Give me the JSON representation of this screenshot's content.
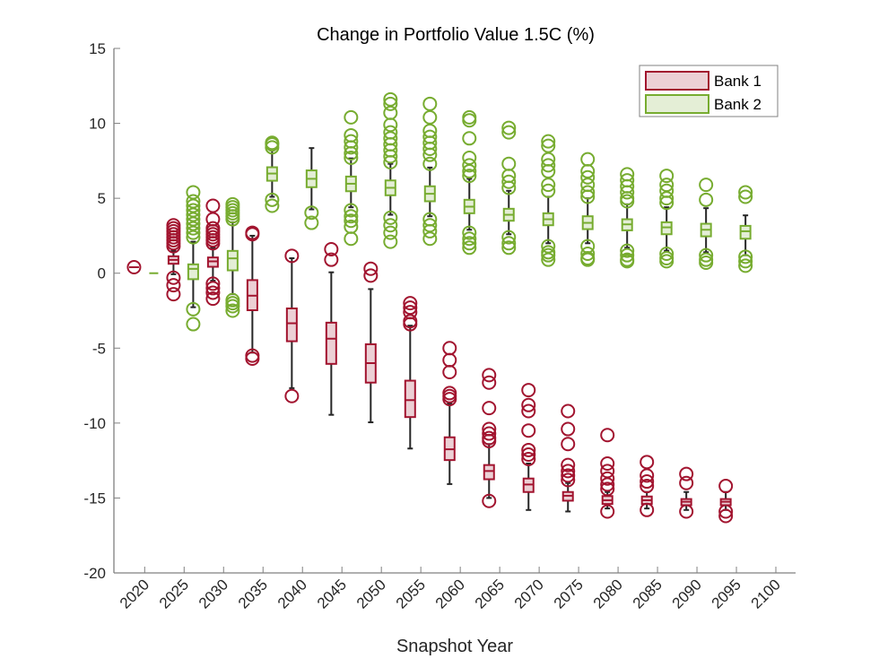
{
  "chart_data": {
    "type": "boxplot",
    "title": "Change in Portfolio Value 1.5C (%)",
    "xlabel": "Snapshot Year",
    "ylabel": "",
    "ylim": [
      -20,
      15
    ],
    "xlim": [
      2016.1,
      2102.5
    ],
    "yticks": [
      15,
      10,
      5,
      0,
      -5,
      -10,
      -15,
      -20
    ],
    "ytick_labels": [
      "15",
      "10",
      "5",
      "0",
      "-5",
      "-10",
      "-15",
      "-20"
    ],
    "xticks": [
      2020,
      2025,
      2030,
      2035,
      2040,
      2045,
      2050,
      2055,
      2060,
      2065,
      2070,
      2075,
      2080,
      2085,
      2090,
      2095,
      2100
    ],
    "xtick_labels": [
      "2020",
      "2025",
      "2030",
      "2035",
      "2040",
      "2045",
      "2050",
      "2055",
      "2060",
      "2065",
      "2070",
      "2075",
      "2080",
      "2085",
      "2090",
      "2095",
      "2100"
    ],
    "grid": false,
    "legend_position": "top-right",
    "legend": [
      "Bank 1",
      "Bank 2"
    ],
    "colors": {
      "Bank 1": "#A2142F",
      "Bank 2": "#77AC30",
      "Bank 1 fill": "#ECD0D5",
      "Bank 2 fill": "#E4EED6",
      "whisker": "#262626"
    },
    "series": [
      {
        "name": "Bank 1",
        "boxes": [
          {
            "year": 2020,
            "q1": 0.4,
            "median": 0.4,
            "q3": 0.4,
            "whisker_low": 0.4,
            "whisker_high": 0.4,
            "outliers": [
              0.4
            ]
          },
          {
            "year": 2025,
            "q1": 0.63,
            "median": 0.89,
            "q3": 1.13,
            "whisker_low": -0.07,
            "whisker_high": 1.49,
            "outliers": [
              1.8,
              2.0,
              2.2,
              2.4,
              2.6,
              2.8,
              3.0,
              3.2,
              -0.3,
              -0.8,
              -1.4
            ]
          },
          {
            "year": 2030,
            "q1": 0.43,
            "median": 0.79,
            "q3": 1.05,
            "whisker_low": -0.5,
            "whisker_high": 1.7,
            "outliers": [
              2.0,
              2.2,
              2.4,
              2.6,
              2.8,
              3.0,
              3.6,
              4.5,
              -0.7,
              -1.0,
              -1.3,
              -1.7
            ]
          },
          {
            "year": 2035,
            "q1": -2.47,
            "median": -1.5,
            "q3": -0.46,
            "whisker_low": -5.3,
            "whisker_high": 2.5,
            "outliers": [
              2.7,
              2.6,
              -5.5,
              -5.7
            ]
          },
          {
            "year": 2040,
            "q1": -4.54,
            "median": -3.34,
            "q3": -2.35,
            "whisker_low": -7.67,
            "whisker_high": 1.0,
            "outliers": [
              1.16,
              -8.2
            ]
          },
          {
            "year": 2045,
            "q1": -6.05,
            "median": -4.37,
            "q3": -3.3,
            "whisker_low": -9.45,
            "whisker_high": 0.06,
            "outliers": [
              1.6,
              0.9
            ]
          },
          {
            "year": 2050,
            "q1": -7.3,
            "median": -6.0,
            "q3": -4.74,
            "whisker_low": -9.95,
            "whisker_high": -1.06,
            "outliers": [
              0.3,
              -0.16
            ]
          },
          {
            "year": 2055,
            "q1": -9.6,
            "median": -8.47,
            "q3": -7.17,
            "whisker_low": -11.7,
            "whisker_high": -3.5,
            "outliers": [
              -2.0,
              -2.3,
              -2.6,
              -3.2,
              -3.4
            ]
          },
          {
            "year": 2060,
            "q1": -12.47,
            "median": -11.75,
            "q3": -10.95,
            "whisker_low": -14.07,
            "whisker_high": -8.7,
            "outliers": [
              -5.0,
              -5.8,
              -6.6,
              -8.0,
              -8.2,
              -8.4
            ]
          },
          {
            "year": 2065,
            "q1": -13.75,
            "median": -13.2,
            "q3": -12.8,
            "whisker_low": -15.0,
            "whisker_high": -11.4,
            "outliers": [
              -6.8,
              -7.3,
              -9.0,
              -10.4,
              -10.7,
              -11.0,
              -11.2,
              -15.2
            ]
          },
          {
            "year": 2070,
            "q1": -14.6,
            "median": -14.1,
            "q3": -13.7,
            "whisker_low": -15.8,
            "whisker_high": -12.7,
            "outliers": [
              -7.8,
              -8.8,
              -9.2,
              -10.5,
              -11.8,
              -12.1,
              -12.4
            ]
          },
          {
            "year": 2075,
            "q1": -15.18,
            "median": -14.85,
            "q3": -14.6,
            "whisker_low": -15.9,
            "whisker_high": -14.0,
            "outliers": [
              -9.2,
              -10.4,
              -11.4,
              -12.8,
              -13.2,
              -13.5,
              -13.8
            ]
          },
          {
            "year": 2080,
            "q1": -15.4,
            "median": -15.15,
            "q3": -14.87,
            "whisker_low": -15.7,
            "whisker_high": -14.6,
            "outliers": [
              -10.8,
              -12.7,
              -13.2,
              -13.7,
              -14.1,
              -14.4,
              -15.9
            ]
          },
          {
            "year": 2085,
            "q1": -15.4,
            "median": -15.15,
            "q3": -14.9,
            "whisker_low": -15.7,
            "whisker_high": -14.6,
            "outliers": [
              -12.6,
              -13.5,
              -13.9,
              -14.2,
              -15.8
            ]
          },
          {
            "year": 2090,
            "q1": -15.48,
            "median": -15.25,
            "q3": -15.07,
            "whisker_low": -15.8,
            "whisker_high": -14.6,
            "outliers": [
              -13.4,
              -14.0,
              -15.9
            ]
          },
          {
            "year": 2095,
            "q1": -15.48,
            "median": -15.25,
            "q3": -15.07,
            "whisker_low": -15.8,
            "whisker_high": -14.6,
            "outliers": [
              -14.2,
              -15.9,
              -16.2
            ]
          }
        ]
      },
      {
        "name": "Bank 2",
        "boxes": [
          {
            "year": 2020,
            "q1": 0.0,
            "median": 0.0,
            "q3": 0.0,
            "whisker_low": 0.0,
            "whisker_high": 0.0,
            "outliers": []
          },
          {
            "year": 2025,
            "q1": -0.4,
            "median": 0.29,
            "q3": 0.59,
            "whisker_low": -2.27,
            "whisker_high": 2.1,
            "outliers": [
              2.4,
              2.7,
              3.0,
              3.3,
              3.6,
              3.9,
              4.2,
              4.5,
              4.8,
              5.4,
              -2.4,
              -3.4
            ]
          },
          {
            "year": 2030,
            "q1": 0.19,
            "median": 0.99,
            "q3": 1.49,
            "whisker_low": -1.4,
            "whisker_high": 3.4,
            "outliers": [
              3.6,
              3.8,
              4.0,
              4.2,
              4.4,
              4.6,
              -1.8,
              -2.0,
              -2.2,
              -2.5
            ]
          },
          {
            "year": 2035,
            "q1": 6.17,
            "median": 6.65,
            "q3": 7.07,
            "whisker_low": 5.1,
            "whisker_high": 8.2,
            "outliers": [
              8.4,
              8.6,
              8.7,
              4.9,
              4.5
            ]
          },
          {
            "year": 2040,
            "q1": 5.74,
            "median": 6.3,
            "q3": 6.86,
            "whisker_low": 4.26,
            "whisker_high": 8.35,
            "outliers": [
              4.04,
              3.36
            ]
          },
          {
            "year": 2045,
            "q1": 5.47,
            "median": 5.97,
            "q3": 6.45,
            "whisker_low": 4.4,
            "whisker_high": 7.66,
            "outliers": [
              10.4,
              9.2,
              8.8,
              8.4,
              8.0,
              7.7,
              4.2,
              3.8,
              3.5,
              3.1,
              2.3
            ]
          },
          {
            "year": 2050,
            "q1": 5.2,
            "median": 5.7,
            "q3": 6.19,
            "whisker_low": 3.9,
            "whisker_high": 7.3,
            "outliers": [
              11.6,
              11.3,
              10.7,
              9.9,
              9.4,
              9.0,
              8.6,
              8.2,
              7.8,
              7.4,
              3.7,
              3.2,
              2.7,
              2.1
            ]
          },
          {
            "year": 2055,
            "q1": 4.8,
            "median": 5.3,
            "q3": 5.8,
            "whisker_low": 3.8,
            "whisker_high": 7.05,
            "outliers": [
              11.3,
              10.4,
              9.5,
              9.1,
              8.7,
              8.3,
              7.9,
              7.3,
              3.6,
              3.2,
              2.8,
              2.3
            ]
          },
          {
            "year": 2060,
            "q1": 4.0,
            "median": 4.44,
            "q3": 4.9,
            "whisker_low": 2.9,
            "whisker_high": 6.3,
            "outliers": [
              10.4,
              10.2,
              9.0,
              7.7,
              7.2,
              6.8,
              6.5,
              2.7,
              2.3,
              2.0,
              1.7
            ]
          },
          {
            "year": 2065,
            "q1": 3.5,
            "median": 3.9,
            "q3": 4.3,
            "whisker_low": 2.6,
            "whisker_high": 5.5,
            "outliers": [
              9.7,
              9.4,
              7.3,
              6.5,
              6.1,
              5.7,
              2.4,
              2.0,
              1.7
            ]
          },
          {
            "year": 2070,
            "q1": 3.2,
            "median": 3.6,
            "q3": 4.0,
            "whisker_low": 2.0,
            "whisker_high": 5.1,
            "outliers": [
              8.8,
              8.5,
              7.6,
              7.2,
              6.8,
              5.9,
              5.5,
              1.8,
              1.4,
              1.2,
              0.9
            ]
          },
          {
            "year": 2075,
            "q1": 2.94,
            "median": 3.36,
            "q3": 3.8,
            "whisker_low": 2.0,
            "whisker_high": 5.0,
            "outliers": [
              7.6,
              6.8,
              6.4,
              5.9,
              5.4,
              5.1,
              1.8,
              1.3,
              1.0,
              0.9
            ]
          },
          {
            "year": 2080,
            "q1": 2.86,
            "median": 3.26,
            "q3": 3.6,
            "whisker_low": 1.7,
            "whisker_high": 4.6,
            "outliers": [
              6.6,
              6.2,
              5.8,
              5.4,
              5.0,
              4.8,
              1.5,
              1.2,
              0.9,
              0.8
            ]
          },
          {
            "year": 2085,
            "q1": 2.6,
            "median": 3.06,
            "q3": 3.4,
            "whisker_low": 1.5,
            "whisker_high": 4.4,
            "outliers": [
              6.5,
              5.9,
              5.5,
              5.0,
              4.7,
              1.3,
              1.0,
              0.8
            ]
          },
          {
            "year": 2090,
            "q1": 2.46,
            "median": 2.9,
            "q3": 3.3,
            "whisker_low": 1.4,
            "whisker_high": 4.34,
            "outliers": [
              5.9,
              4.9,
              1.2,
              0.9,
              0.7
            ]
          },
          {
            "year": 2095,
            "q1": 2.3,
            "median": 2.8,
            "q3": 3.16,
            "whisker_low": 1.2,
            "whisker_high": 3.86,
            "outliers": [
              5.4,
              5.1,
              1.1,
              0.8,
              0.5
            ]
          }
        ]
      }
    ]
  }
}
